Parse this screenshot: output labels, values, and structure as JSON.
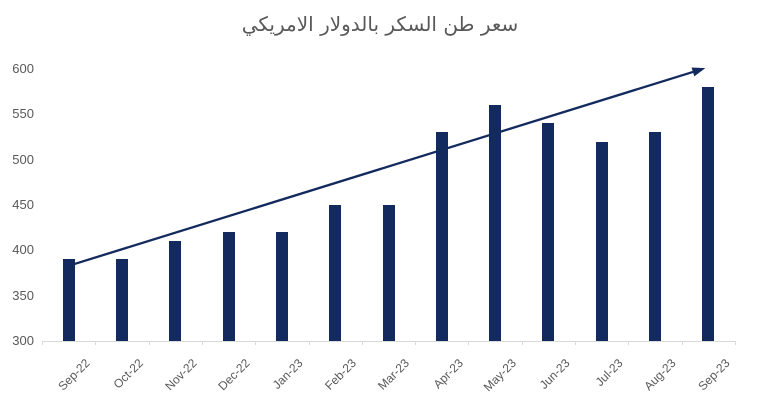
{
  "chart_data": {
    "type": "bar",
    "title": "سعر طن السكر بالدولار الامريكي",
    "categories": [
      "Sep-22",
      "Oct-22",
      "Nov-22",
      "Dec-22",
      "Jan-23",
      "Feb-23",
      "Mar-23",
      "Apr-23",
      "May-23",
      "Jun-23",
      "Jul-23",
      "Aug-23",
      "Sep-23"
    ],
    "values": [
      390,
      390,
      410,
      420,
      420,
      450,
      450,
      530,
      560,
      540,
      520,
      530,
      580
    ],
    "xlabel": "",
    "ylabel": "",
    "ylim": [
      300,
      600
    ],
    "yticks": [
      300,
      350,
      400,
      450,
      500,
      550,
      600
    ],
    "grid": false,
    "legend": "none",
    "colors": {
      "bar": "#132A5E",
      "trend": "#132A5E",
      "axis": "#D9D9D9",
      "text": "#595959",
      "title": "#595959"
    },
    "trendline": {
      "shape": "straight-arrow",
      "direction": "up",
      "start": {
        "category_index": 0,
        "value": 385
      },
      "end": {
        "category_index": 12,
        "value": 601
      }
    }
  }
}
